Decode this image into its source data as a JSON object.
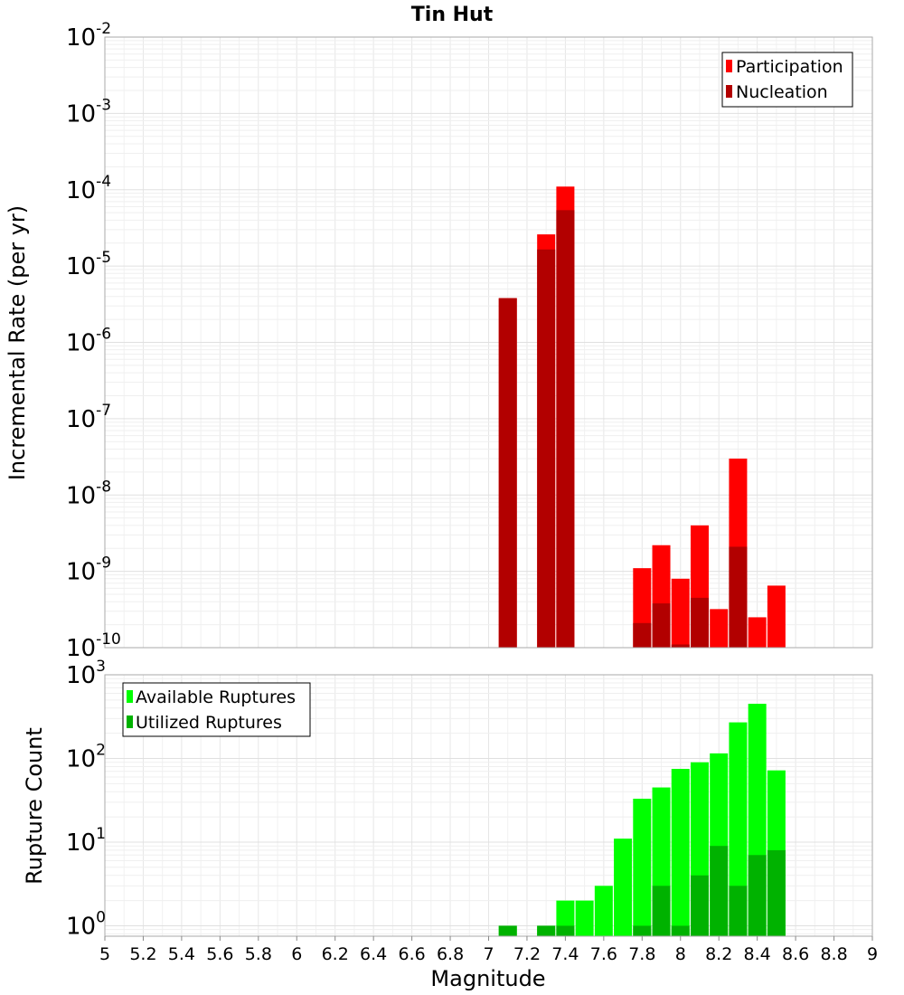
{
  "title": "Tin Hut",
  "xlabel": "Magnitude",
  "chart_data": [
    {
      "type": "bar",
      "scale": "log",
      "ylabel": "Incremental Rate (per yr)",
      "xlim": [
        5,
        9
      ],
      "ylim": [
        1e-10,
        0.01
      ],
      "grid": true,
      "legend_position": "top-right",
      "x": [
        7.1,
        7.3,
        7.4,
        7.8,
        7.9,
        8.0,
        8.1,
        8.2,
        8.3,
        8.4,
        8.5
      ],
      "series": [
        {
          "name": "Participation",
          "color": "#ff0000",
          "values": [
            3.8e-06,
            2.6e-05,
            0.00011,
            1.1e-09,
            2.2e-09,
            8e-10,
            4e-09,
            3.2e-10,
            3e-08,
            2.5e-10,
            6.5e-10
          ]
        },
        {
          "name": "Nucleation",
          "color": "#b20000",
          "values": [
            3.8e-06,
            1.65e-05,
            5.4e-05,
            2.1e-10,
            3.8e-10,
            1.1e-10,
            4.5e-10,
            null,
            2.1e-09,
            null,
            null
          ]
        }
      ]
    },
    {
      "type": "bar",
      "scale": "log",
      "ylabel": "Rupture Count",
      "xlim": [
        5,
        9
      ],
      "ylim": [
        0.75,
        1000
      ],
      "grid": true,
      "legend_position": "top-left",
      "x": [
        7.1,
        7.3,
        7.4,
        7.5,
        7.6,
        7.7,
        7.8,
        7.9,
        8.0,
        8.1,
        8.2,
        8.3,
        8.4,
        8.5
      ],
      "series": [
        {
          "name": "Available Ruptures",
          "color": "#00ff00",
          "values": [
            1,
            1,
            2,
            2,
            3,
            11,
            33,
            45,
            75,
            90,
            115,
            270,
            450,
            72
          ]
        },
        {
          "name": "Utilized Ruptures",
          "color": "#00b200",
          "values": [
            1,
            1,
            1,
            null,
            null,
            null,
            1,
            3,
            1,
            4,
            9,
            3,
            7,
            8
          ]
        }
      ]
    }
  ],
  "x_ticks": [
    "5",
    "5.2",
    "5.4",
    "5.6",
    "5.8",
    "6",
    "6.2",
    "6.4",
    "6.6",
    "6.8",
    "7",
    "7.2",
    "7.4",
    "7.6",
    "7.8",
    "8",
    "8.2",
    "8.4",
    "8.6",
    "8.8",
    "9"
  ]
}
